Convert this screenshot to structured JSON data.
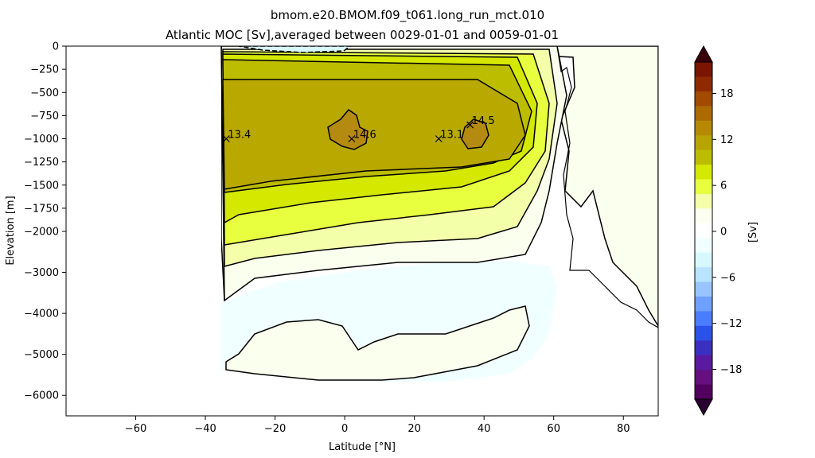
{
  "chart_data": {
    "type": "contour",
    "title_line1": "bmom.e20.BMOM.f09_t061.long_run_mct.010",
    "title_line2": "Atlantic MOC [Sv],averaged between 0029-01-01 and 0059-01-01",
    "xlabel": "Latitude [°N]",
    "ylabel": "Elevation [m]",
    "xlim": [
      -80,
      90
    ],
    "x_ticks": [
      -60,
      -40,
      -20,
      0,
      20,
      40,
      60,
      80
    ],
    "y_scale_note": "linear 0 to -2000 on upper part, compressed -2000 to -6500 below",
    "y_ticks": [
      0,
      -250,
      -500,
      -750,
      -1000,
      -1250,
      -1500,
      -1750,
      -2000,
      -3000,
      -4000,
      -5000,
      -6000
    ],
    "colorbar": {
      "label": "[Sv]",
      "ticks": [
        18,
        12,
        6,
        0,
        -6,
        -12,
        -18
      ],
      "levels_top_to_bottom": [
        "#7a1500",
        "#8e2a00",
        "#a14a00",
        "#ad6a00",
        "#b58a00",
        "#b8a400",
        "#bdbd00",
        "#d4e800",
        "#e8ff40",
        "#f4ffaa",
        "#fbfff0",
        "#ffffff",
        "#f0ffff",
        "#d8f8ff",
        "#b8e4ff",
        "#98c4ff",
        "#6ea0ff",
        "#4a7cff",
        "#2b52e8",
        "#3a30c0",
        "#5a1aa0",
        "#661080",
        "#52005e"
      ]
    },
    "annotations": [
      {
        "lat": -34,
        "depth": -1000,
        "label": "13.4"
      },
      {
        "lat": 2,
        "depth": -1000,
        "label": "14.6"
      },
      {
        "lat": 27,
        "depth": -1000,
        "label": "13.1"
      },
      {
        "lat": 36,
        "depth": -850,
        "label": "14.5"
      }
    ]
  }
}
